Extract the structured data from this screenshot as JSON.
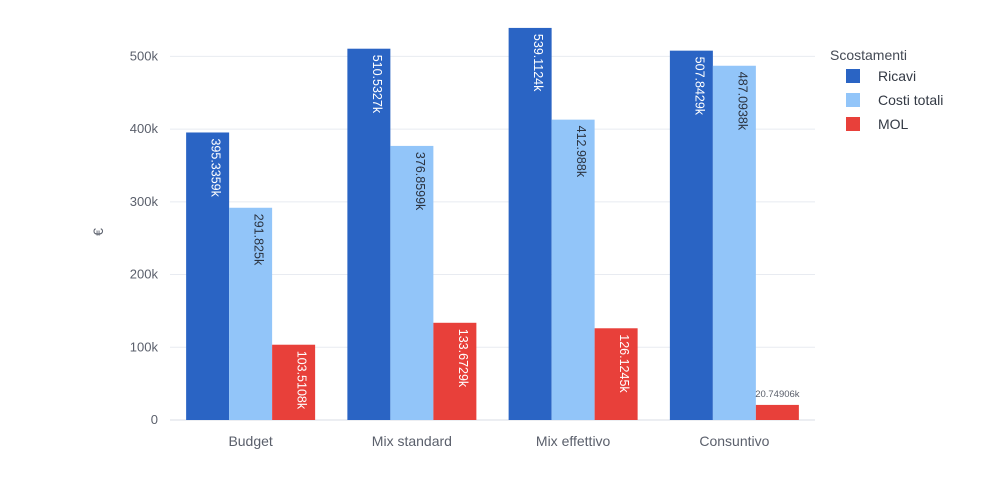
{
  "chart_data": {
    "type": "bar",
    "title": "",
    "xlabel": "",
    "ylabel": "€",
    "ylim": [
      0,
      550000
    ],
    "yticks": [
      0,
      100000,
      200000,
      300000,
      400000,
      500000
    ],
    "ytick_labels": [
      "0",
      "100k",
      "200k",
      "300k",
      "400k",
      "500k"
    ],
    "categories": [
      "Budget",
      "Mix standard",
      "Mix effettivo",
      "Consuntivo"
    ],
    "grid": true,
    "legend": {
      "title": "Scostamenti",
      "position": "top-right"
    },
    "series": [
      {
        "name": "Ricavi",
        "color": "#2a64c4",
        "values": [
          395335.9,
          510532.7,
          539112.4,
          507842.9
        ],
        "labels": [
          "395.3359k",
          "510.5327k",
          "539.1124k",
          "507.8429k"
        ]
      },
      {
        "name": "Costi totali",
        "color": "#92c5f9",
        "values": [
          291825,
          376859.9,
          412988,
          487093.8
        ],
        "labels": [
          "291.825k",
          "376.8599k",
          "412.988k",
          "487.0938k"
        ]
      },
      {
        "name": "MOL",
        "color": "#e8403a",
        "values": [
          103510.8,
          133672.9,
          126124.5,
          20749.06
        ],
        "labels": [
          "103.5108k",
          "133.6729k",
          "126.1245k",
          "20.74906k"
        ]
      }
    ]
  }
}
